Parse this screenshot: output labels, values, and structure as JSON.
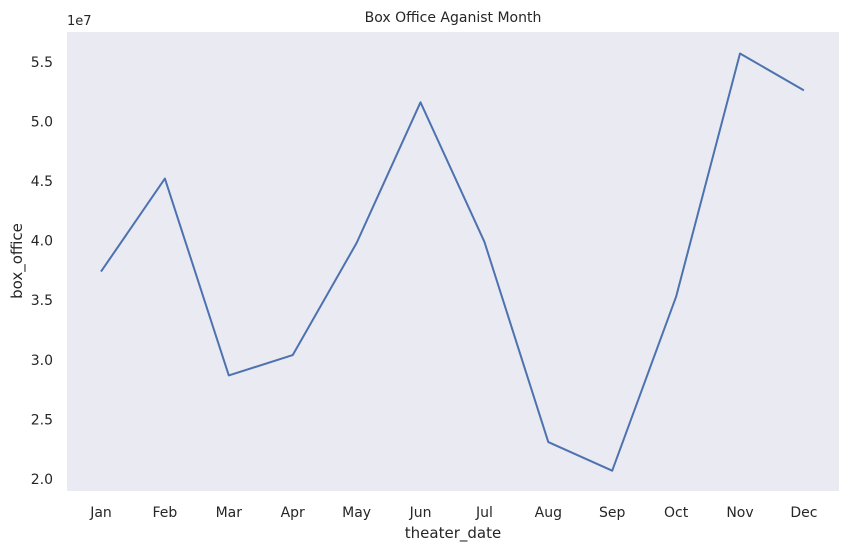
{
  "chart_data": {
    "type": "line",
    "title": "Box Office Aganist Month",
    "xlabel": "theater_date",
    "ylabel": "box_office",
    "offset_label": "1e7",
    "categories": [
      "Jan",
      "Feb",
      "Mar",
      "Apr",
      "May",
      "Jun",
      "Jul",
      "Aug",
      "Sep",
      "Oct",
      "Nov",
      "Dec"
    ],
    "series": [
      {
        "values": [
          37400000,
          45200000,
          28700000,
          30400000,
          39800000,
          51600000,
          39900000,
          23100000,
          20700000,
          35300000,
          55700000,
          52600000
        ]
      }
    ],
    "ylim": [
      19000000,
      57500000
    ],
    "yticks": [
      20000000,
      25000000,
      30000000,
      35000000,
      40000000,
      45000000,
      50000000,
      55000000
    ],
    "ytick_labels": [
      "2.0",
      "2.5",
      "3.0",
      "3.5",
      "4.0",
      "4.5",
      "5.0",
      "5.5"
    ],
    "grid": false,
    "colors": {
      "line": "#4c72b0",
      "plot_background": "#eaeaf2"
    }
  }
}
